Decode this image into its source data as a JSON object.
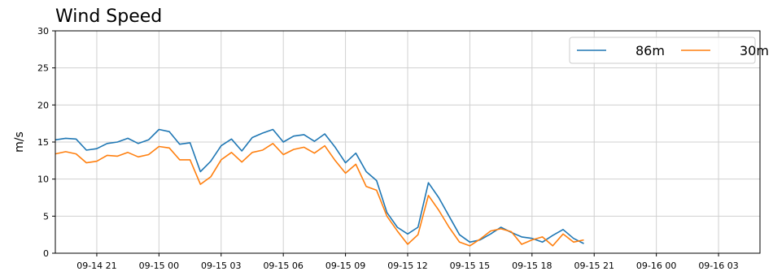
{
  "chart_data": {
    "type": "line",
    "title": "Wind Speed",
    "xlabel": "",
    "ylabel": "m/s",
    "ylim": [
      0,
      30
    ],
    "xlim": [
      "2023-09-14 19:00",
      "2023-09-16 05:00"
    ],
    "yticks": [
      0,
      5,
      10,
      15,
      20,
      25,
      30
    ],
    "xticks": [
      {
        "t": "2023-09-14 21:00",
        "label": "09-14 21"
      },
      {
        "t": "2023-09-15 00:00",
        "label": "09-15 00"
      },
      {
        "t": "2023-09-15 03:00",
        "label": "09-15 03"
      },
      {
        "t": "2023-09-15 06:00",
        "label": "09-15 06"
      },
      {
        "t": "2023-09-15 09:00",
        "label": "09-15 09"
      },
      {
        "t": "2023-09-15 12:00",
        "label": "09-15 12"
      },
      {
        "t": "2023-09-15 15:00",
        "label": "09-15 15"
      },
      {
        "t": "2023-09-15 18:00",
        "label": "09-15 18"
      },
      {
        "t": "2023-09-15 21:00",
        "label": "09-15 21"
      },
      {
        "t": "2023-09-16 00:00",
        "label": "09-16 00"
      },
      {
        "t": "2023-09-16 03:00",
        "label": "09-16 03"
      }
    ],
    "grid": true,
    "legend_position": "top-right",
    "series": [
      {
        "name": "86m",
        "color": "#1f77b4",
        "points": [
          [
            "2023-09-14 19:00",
            15.3
          ],
          [
            "2023-09-14 19:30",
            15.5
          ],
          [
            "2023-09-14 20:00",
            15.4
          ],
          [
            "2023-09-14 20:30",
            13.9
          ],
          [
            "2023-09-14 21:00",
            14.1
          ],
          [
            "2023-09-14 21:30",
            14.8
          ],
          [
            "2023-09-14 22:00",
            15.0
          ],
          [
            "2023-09-14 22:30",
            15.5
          ],
          [
            "2023-09-14 23:00",
            14.8
          ],
          [
            "2023-09-14 23:30",
            15.3
          ],
          [
            "2023-09-15 00:00",
            16.7
          ],
          [
            "2023-09-15 00:30",
            16.4
          ],
          [
            "2023-09-15 01:00",
            14.7
          ],
          [
            "2023-09-15 01:30",
            14.9
          ],
          [
            "2023-09-15 02:00",
            11.0
          ],
          [
            "2023-09-15 02:30",
            12.4
          ],
          [
            "2023-09-15 03:00",
            14.5
          ],
          [
            "2023-09-15 03:30",
            15.4
          ],
          [
            "2023-09-15 04:00",
            13.8
          ],
          [
            "2023-09-15 04:30",
            15.6
          ],
          [
            "2023-09-15 05:00",
            16.2
          ],
          [
            "2023-09-15 05:30",
            16.7
          ],
          [
            "2023-09-15 06:00",
            15.0
          ],
          [
            "2023-09-15 06:30",
            15.8
          ],
          [
            "2023-09-15 07:00",
            16.0
          ],
          [
            "2023-09-15 07:30",
            15.1
          ],
          [
            "2023-09-15 08:00",
            16.1
          ],
          [
            "2023-09-15 08:30",
            14.3
          ],
          [
            "2023-09-15 09:00",
            12.2
          ],
          [
            "2023-09-15 09:30",
            13.5
          ],
          [
            "2023-09-15 10:00",
            11.0
          ],
          [
            "2023-09-15 10:30",
            9.8
          ],
          [
            "2023-09-15 11:00",
            5.5
          ],
          [
            "2023-09-15 11:30",
            3.5
          ],
          [
            "2023-09-15 12:00",
            2.6
          ],
          [
            "2023-09-15 12:30",
            3.5
          ],
          [
            "2023-09-15 13:00",
            9.5
          ],
          [
            "2023-09-15 13:30",
            7.5
          ],
          [
            "2023-09-15 14:00",
            5.0
          ],
          [
            "2023-09-15 14:30",
            2.5
          ],
          [
            "2023-09-15 15:00",
            1.5
          ],
          [
            "2023-09-15 15:30",
            1.8
          ],
          [
            "2023-09-15 16:00",
            2.6
          ],
          [
            "2023-09-15 16:30",
            3.5
          ],
          [
            "2023-09-15 17:00",
            2.8
          ],
          [
            "2023-09-15 17:30",
            2.2
          ],
          [
            "2023-09-15 18:00",
            2.0
          ],
          [
            "2023-09-15 18:30",
            1.5
          ],
          [
            "2023-09-15 19:00",
            2.4
          ],
          [
            "2023-09-15 19:30",
            3.2
          ],
          [
            "2023-09-15 20:00",
            2.0
          ],
          [
            "2023-09-15 20:30",
            1.3
          ]
        ]
      },
      {
        "name": "30m",
        "color": "#ff7f0e",
        "points": [
          [
            "2023-09-14 19:00",
            13.4
          ],
          [
            "2023-09-14 19:30",
            13.7
          ],
          [
            "2023-09-14 20:00",
            13.4
          ],
          [
            "2023-09-14 20:30",
            12.2
          ],
          [
            "2023-09-14 21:00",
            12.4
          ],
          [
            "2023-09-14 21:30",
            13.2
          ],
          [
            "2023-09-14 22:00",
            13.1
          ],
          [
            "2023-09-14 22:30",
            13.6
          ],
          [
            "2023-09-14 23:00",
            13.0
          ],
          [
            "2023-09-14 23:30",
            13.3
          ],
          [
            "2023-09-15 00:00",
            14.4
          ],
          [
            "2023-09-15 00:30",
            14.2
          ],
          [
            "2023-09-15 01:00",
            12.6
          ],
          [
            "2023-09-15 01:30",
            12.6
          ],
          [
            "2023-09-15 02:00",
            9.3
          ],
          [
            "2023-09-15 02:30",
            10.3
          ],
          [
            "2023-09-15 03:00",
            12.6
          ],
          [
            "2023-09-15 03:30",
            13.6
          ],
          [
            "2023-09-15 04:00",
            12.3
          ],
          [
            "2023-09-15 04:30",
            13.6
          ],
          [
            "2023-09-15 05:00",
            13.9
          ],
          [
            "2023-09-15 05:30",
            14.8
          ],
          [
            "2023-09-15 06:00",
            13.3
          ],
          [
            "2023-09-15 06:30",
            14.0
          ],
          [
            "2023-09-15 07:00",
            14.3
          ],
          [
            "2023-09-15 07:30",
            13.5
          ],
          [
            "2023-09-15 08:00",
            14.5
          ],
          [
            "2023-09-15 08:30",
            12.5
          ],
          [
            "2023-09-15 09:00",
            10.8
          ],
          [
            "2023-09-15 09:30",
            12.0
          ],
          [
            "2023-09-15 10:00",
            9.0
          ],
          [
            "2023-09-15 10:30",
            8.5
          ],
          [
            "2023-09-15 11:00",
            5.0
          ],
          [
            "2023-09-15 11:30",
            3.0
          ],
          [
            "2023-09-15 12:00",
            1.2
          ],
          [
            "2023-09-15 12:30",
            2.5
          ],
          [
            "2023-09-15 13:00",
            7.8
          ],
          [
            "2023-09-15 13:30",
            5.8
          ],
          [
            "2023-09-15 14:00",
            3.5
          ],
          [
            "2023-09-15 14:30",
            1.5
          ],
          [
            "2023-09-15 15:00",
            1.0
          ],
          [
            "2023-09-15 15:30",
            1.9
          ],
          [
            "2023-09-15 16:00",
            3.0
          ],
          [
            "2023-09-15 16:30",
            3.3
          ],
          [
            "2023-09-15 17:00",
            2.9
          ],
          [
            "2023-09-15 17:30",
            1.2
          ],
          [
            "2023-09-15 18:00",
            1.8
          ],
          [
            "2023-09-15 18:30",
            2.2
          ],
          [
            "2023-09-15 19:00",
            1.0
          ],
          [
            "2023-09-15 19:30",
            2.6
          ],
          [
            "2023-09-15 20:00",
            1.5
          ],
          [
            "2023-09-15 20:30",
            1.8
          ]
        ]
      }
    ]
  }
}
